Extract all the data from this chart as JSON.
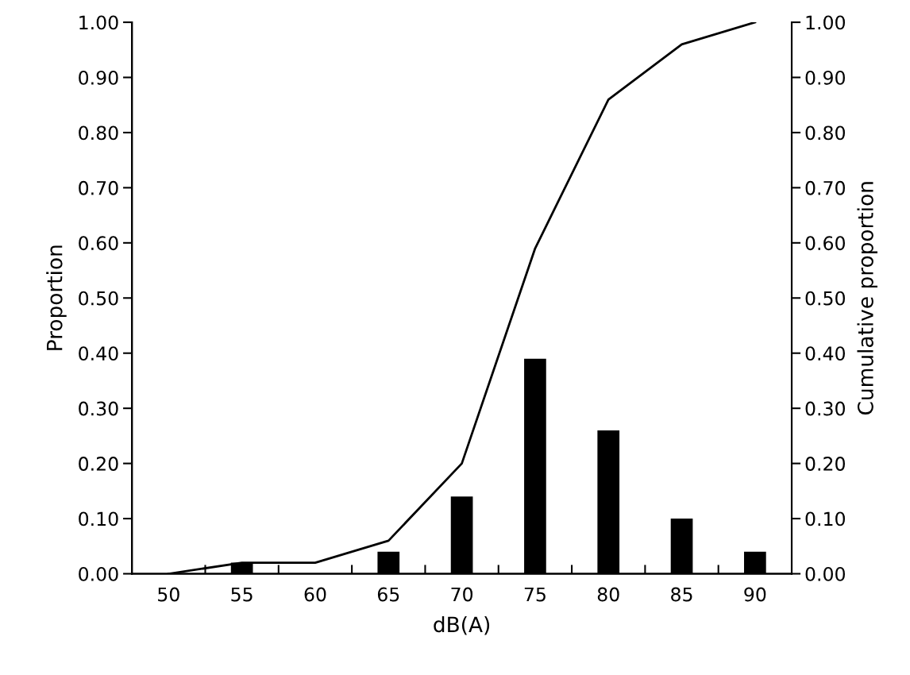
{
  "chart_data": {
    "type": "bar",
    "xlabel": "dB(A)",
    "ylabel": "Proportion",
    "y2label": "Cumulative proportion",
    "categories": [
      "50",
      "55",
      "60",
      "65",
      "70",
      "75",
      "80",
      "85",
      "90"
    ],
    "series": [
      {
        "color": "#000000",
        "values": [
          0.0,
          0.02,
          0.0,
          0.04,
          0.14,
          0.39,
          0.26,
          0.1,
          0.04
        ]
      },
      {
        "type": "line",
        "color": "#000000",
        "values": [
          0.0,
          0.02,
          0.02,
          0.06,
          0.2,
          0.59,
          0.86,
          0.96,
          1.0
        ]
      }
    ],
    "ylim": [
      0,
      1
    ],
    "yticks": [
      {
        "value": 0,
        "label": "0.00"
      },
      {
        "value": 0.1,
        "label": "0.10"
      },
      {
        "value": 0.2,
        "label": "0.20"
      },
      {
        "value": 0.3,
        "label": "0.30"
      },
      {
        "value": 0.4,
        "label": "0.40"
      },
      {
        "value": 0.5,
        "label": "0.50"
      },
      {
        "value": 0.6,
        "label": "0.60"
      },
      {
        "value": 0.7,
        "label": "0.70"
      },
      {
        "value": 0.8,
        "label": "0.80"
      },
      {
        "value": 0.9,
        "label": "0.90"
      },
      {
        "value": 1,
        "label": "1.00"
      }
    ],
    "y2lim": [
      0,
      1
    ],
    "y2ticks": [
      {
        "value": 0,
        "label": "0.00"
      },
      {
        "value": 0.1,
        "label": "0.10"
      },
      {
        "value": 0.2,
        "label": "0.20"
      },
      {
        "value": 0.3,
        "label": "0.30"
      },
      {
        "value": 0.4,
        "label": "0.40"
      },
      {
        "value": 0.5,
        "label": "0.50"
      },
      {
        "value": 0.6,
        "label": "0.60"
      },
      {
        "value": 0.7,
        "label": "0.70"
      },
      {
        "value": 0.8,
        "label": "0.80"
      },
      {
        "value": 0.9,
        "label": "0.90"
      },
      {
        "value": 1,
        "label": "1.00"
      }
    ],
    "grid": false,
    "legend": false,
    "marker": "none",
    "line_style": "solid"
  }
}
